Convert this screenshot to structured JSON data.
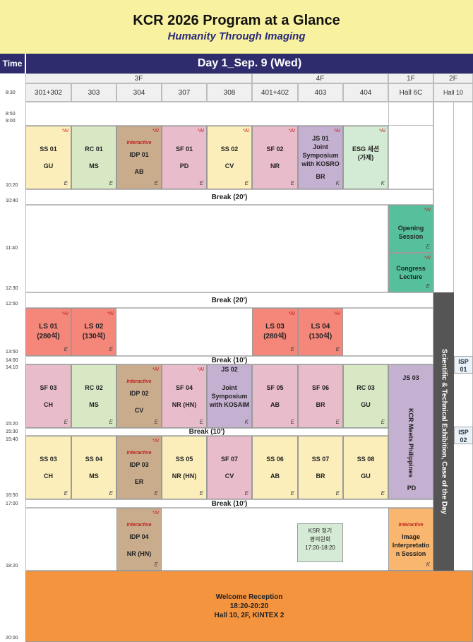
{
  "header": {
    "title": "KCR 2026 Program at a Glance",
    "subtitle": "Humanity Through Imaging"
  },
  "bar": {
    "time_label": "Time",
    "day_label": "Day 1_Sep. 9 (Wed)"
  },
  "floors": [
    "3F",
    "4F",
    "1F",
    "2F"
  ],
  "rooms": [
    "301+302",
    "303",
    "304",
    "307",
    "308",
    "401+402",
    "403",
    "404",
    "Hall 6C",
    "Hall 10"
  ],
  "times": [
    "8:30",
    "8:50",
    "9:00",
    "10:20",
    "10:40",
    "11:40",
    "12:30",
    "12:50",
    "13:50",
    "14:00",
    "14:10",
    "15:20",
    "15:30",
    "15:40",
    "16:50",
    "17:00",
    "18:20",
    "20:00"
  ],
  "tags": {
    "ai": "*AI",
    "interactive": "Interactive"
  },
  "breaks": [
    "Break (20')",
    "Break (20')",
    "Break (10')",
    "Break (10')",
    "Break (10')"
  ],
  "block1": [
    {
      "code": "SS 01",
      "sub": "GU",
      "lang": "E",
      "ai": true
    },
    {
      "code": "RC 01",
      "sub": "MS",
      "lang": "E",
      "ai": false
    },
    {
      "code": "IDP 01",
      "sub": "AB",
      "lang": "E",
      "ai": true,
      "interactive": true
    },
    {
      "code": "SF 01",
      "sub": "PD",
      "lang": "E",
      "ai": true
    },
    {
      "code": "SS 02",
      "sub": "CV",
      "lang": "E",
      "ai": true
    },
    {
      "code": "SF 02",
      "sub": "NR",
      "lang": "E",
      "ai": true
    },
    {
      "code": "JS 01",
      "line2": "Joint",
      "line3": "Symposium",
      "line4": "with KOSRO",
      "sub": "BR",
      "lang": "K",
      "ai": true
    },
    {
      "code": "ESG 세션",
      "line2": "(가제)",
      "lang": "K",
      "ai": true
    }
  ],
  "hall6c_morning": [
    {
      "line1": "Opening",
      "line2": "Session",
      "lang": "E"
    },
    {
      "line1": "Congress",
      "line2": "Lecture",
      "lang": "E"
    }
  ],
  "block2": [
    {
      "code": "LS 01",
      "sub": "(280석)",
      "lang": "E"
    },
    {
      "code": "LS 02",
      "sub": "(130석)",
      "lang": "E"
    },
    {
      "code": "LS 03",
      "sub": "(280석)",
      "lang": "E"
    },
    {
      "code": "LS 04",
      "sub": "(130석)",
      "lang": "E"
    }
  ],
  "block3": [
    {
      "code": "SF 03",
      "sub": "CH",
      "lang": "E"
    },
    {
      "code": "RC 02",
      "sub": "MS",
      "lang": "E"
    },
    {
      "code": "IDP 02",
      "sub": "CV",
      "lang": "E"
    },
    {
      "code": "SF 04",
      "sub": "NR (HN)",
      "lang": "E"
    },
    {
      "code": "JS 02",
      "line2": "Joint",
      "line3": "Symposium",
      "line4": "with KOSAIM",
      "lang": "K"
    },
    {
      "code": "SF 05",
      "sub": "AB",
      "lang": "E"
    },
    {
      "code": "SF 06",
      "sub": "BR",
      "lang": "E"
    },
    {
      "code": "RC 03",
      "sub": "GU",
      "lang": "E"
    }
  ],
  "js03": {
    "code": "JS 03",
    "vertical": "KCR Meets Philippines",
    "sub": "PD"
  },
  "block4": [
    {
      "code": "SS 03",
      "sub": "CH",
      "lang": "E"
    },
    {
      "code": "SS 04",
      "sub": "MS",
      "lang": "E"
    },
    {
      "code": "IDP 03",
      "sub": "ER",
      "lang": "E"
    },
    {
      "code": "SS 05",
      "sub": "NR (HN)",
      "lang": "E"
    },
    {
      "code": "SF 07",
      "sub": "CV",
      "lang": "E"
    },
    {
      "code": "SS 06",
      "sub": "AB",
      "lang": "E"
    },
    {
      "code": "SS 07",
      "sub": "BR",
      "lang": "E"
    },
    {
      "code": "SS 08",
      "sub": "GU",
      "lang": "E"
    }
  ],
  "block5": {
    "idp04": {
      "code": "IDP 04",
      "sub": "NR (HN)",
      "lang": "E"
    },
    "ksr": {
      "line1": "KSR 정기",
      "line2": "평의원회",
      "line3": "17:20-18:20"
    },
    "image": {
      "line1": "Image",
      "line2": "Interpretatio",
      "line3": "n Session",
      "lang": "K"
    }
  },
  "sciex": "Scientific & Technical Exhibition, Case of the Day",
  "isp": [
    {
      "line1": "ISP",
      "line2": "01"
    },
    {
      "line1": "ISP",
      "line2": "02"
    }
  ],
  "welcome": {
    "line1": "Welcome Reception",
    "line2": "18:20-20:20",
    "line3": "Hall 10, 2F, KINTEX 2"
  }
}
